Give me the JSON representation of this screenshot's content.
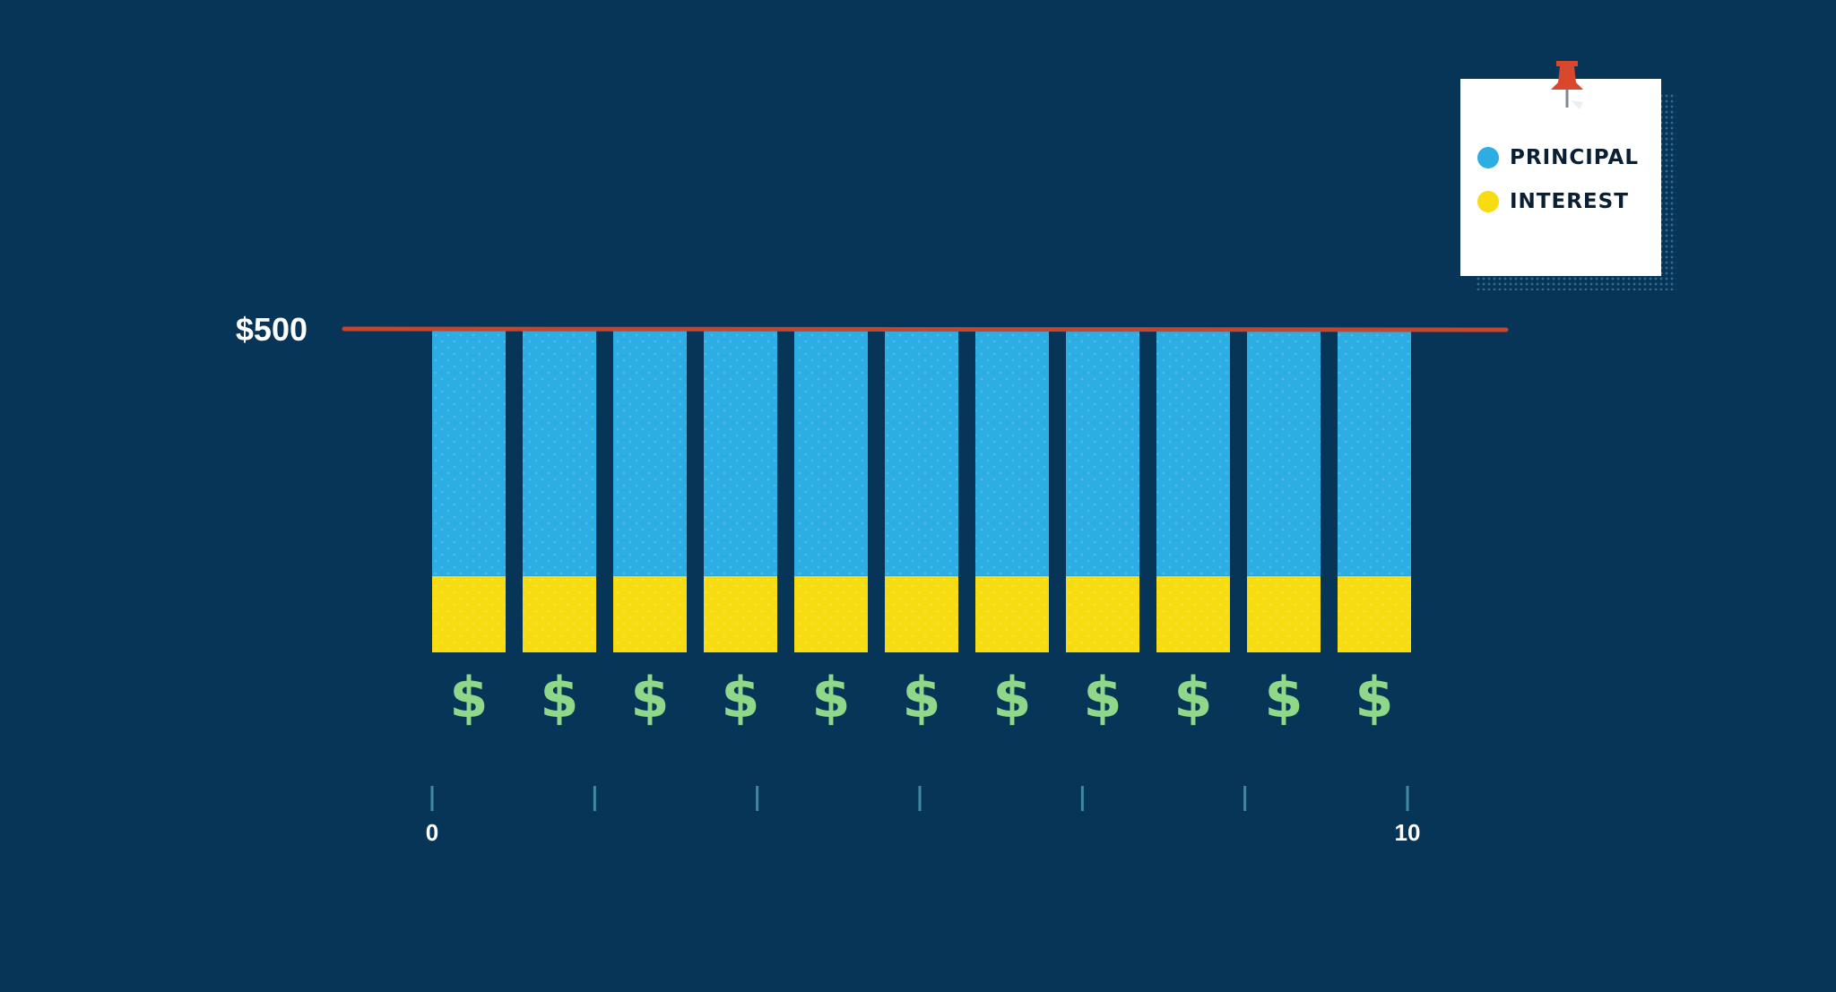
{
  "chart_data": {
    "type": "bar",
    "stacked": true,
    "categories": [
      "",
      "",
      "",
      "",
      "",
      "",
      "",
      "",
      "",
      "",
      ""
    ],
    "series": [
      {
        "name": "INTEREST",
        "color": "#f7dc11",
        "values": [
          118,
          118,
          118,
          118,
          118,
          118,
          118,
          118,
          118,
          118,
          118
        ]
      },
      {
        "name": "PRINCIPAL",
        "color": "#2cade3",
        "values": [
          382,
          382,
          382,
          382,
          382,
          382,
          382,
          382,
          382,
          382,
          382
        ]
      }
    ],
    "reference_line": {
      "value": 500,
      "label": "$500",
      "color": "#c8442a"
    },
    "bar_symbol": "$",
    "bar_symbol_color": "#8fd88a",
    "x_axis": {
      "ticks": [
        0,
        1.667,
        3.333,
        5,
        6.667,
        8.333,
        10
      ],
      "labels": [
        "0",
        "",
        "",
        "",
        "",
        "",
        "10"
      ]
    },
    "legend": {
      "placement": "top-right",
      "style": "pinned-note"
    },
    "grid": false
  }
}
